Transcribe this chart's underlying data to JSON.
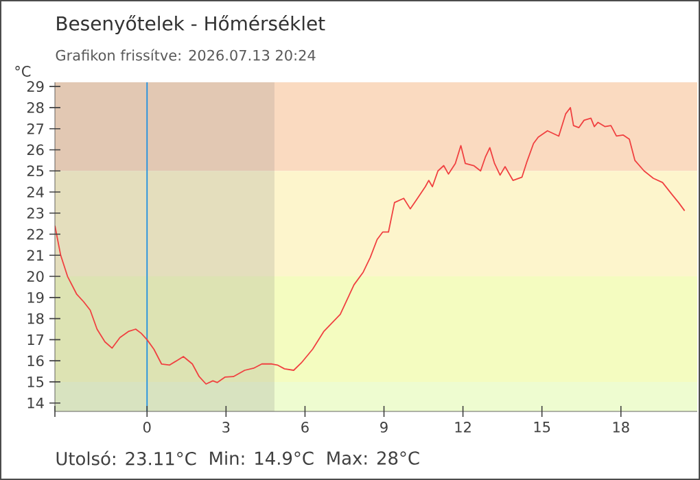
{
  "chart_data": {
    "type": "line",
    "title": "Besenyőtelek - Hőmérséklet",
    "subtitle": "Grafikon frissítve: 2026.07.13 20:24",
    "ylabel": "°C",
    "annotations": [
      "Utolsó: 23.11°C",
      "Min: 14.9°C",
      "Max: 28°C"
    ],
    "xlim": [
      -3.5,
      20.9
    ],
    "ylim": [
      13.6,
      29.2
    ],
    "xticks": [
      {
        "value": -3.5,
        "label": null
      },
      0,
      3,
      6,
      9,
      12,
      15,
      18
    ],
    "yticks": [
      14,
      15,
      16,
      17,
      18,
      19,
      20,
      21,
      22,
      23,
      24,
      25,
      26,
      27,
      28,
      29
    ],
    "bands": [
      {
        "axis": "y",
        "from": 25,
        "to": 29.2,
        "color": "#fadac0"
      },
      {
        "axis": "y",
        "from": 20,
        "to": 25,
        "color": "#fdf5cc"
      },
      {
        "axis": "y",
        "from": 15,
        "to": 20,
        "color": "#f4fcc0"
      },
      {
        "axis": "y",
        "from": 13.6,
        "to": 15,
        "color": "#eefcd0"
      },
      {
        "axis": "x",
        "from": -3.5,
        "to": 4.84,
        "color": "#808080"
      }
    ],
    "ref_lines": [
      {
        "axis": "x",
        "value": 0,
        "color": "#1e8fe0"
      }
    ],
    "series": [
      {
        "color": "#f04040",
        "x": [
          -3.5,
          -3.28,
          -3.02,
          -2.67,
          -2.41,
          -2.16,
          -1.9,
          -1.6,
          -1.33,
          -1.03,
          -0.69,
          -0.43,
          -0.22,
          0,
          0.26,
          0.55,
          0.86,
          1.12,
          1.38,
          1.72,
          1.98,
          2.24,
          2.5,
          2.67,
          2.97,
          3.28,
          3.71,
          4.05,
          4.36,
          4.74,
          4.95,
          5.22,
          5.57,
          5.86,
          6.29,
          6.72,
          7.07,
          7.34,
          7.86,
          8.21,
          8.48,
          8.74,
          8.95,
          9.17,
          9.4,
          9.75,
          10.0,
          10.22,
          10.57,
          10.7,
          10.84,
          11.05,
          11.27,
          11.45,
          11.71,
          11.92,
          12.09,
          12.41,
          12.67,
          12.85,
          13.02,
          13.2,
          13.41,
          13.6,
          13.9,
          14.24,
          14.42,
          14.68,
          14.86,
          15.21,
          15.64,
          15.9,
          16.08,
          16.2,
          16.4,
          16.6,
          16.86,
          16.99,
          17.13,
          17.39,
          17.62,
          17.83,
          18.09,
          18.32,
          18.53,
          18.88,
          19.23,
          19.58,
          19.93,
          20.19,
          20.42
        ],
        "values": [
          22.4,
          21.0,
          20.0,
          19.15,
          18.8,
          18.4,
          17.5,
          16.9,
          16.6,
          17.1,
          17.4,
          17.5,
          17.3,
          17.0,
          16.55,
          15.85,
          15.8,
          16.0,
          16.2,
          15.85,
          15.25,
          14.9,
          15.05,
          14.97,
          15.23,
          15.25,
          15.55,
          15.65,
          15.85,
          15.85,
          15.8,
          15.62,
          15.55,
          15.9,
          16.55,
          17.4,
          17.85,
          18.2,
          19.6,
          20.2,
          20.9,
          21.75,
          22.1,
          22.1,
          23.5,
          23.7,
          23.2,
          23.6,
          24.25,
          24.55,
          24.25,
          25.0,
          25.25,
          24.85,
          25.35,
          26.2,
          25.35,
          25.25,
          25.0,
          25.65,
          26.1,
          25.35,
          24.8,
          25.2,
          24.55,
          24.7,
          25.4,
          26.3,
          26.6,
          26.9,
          26.65,
          27.7,
          28.0,
          27.15,
          27.05,
          27.4,
          27.5,
          27.1,
          27.3,
          27.1,
          27.15,
          26.65,
          26.7,
          26.5,
          25.5,
          25.0,
          24.65,
          24.45,
          23.9,
          23.5,
          23.11
        ]
      }
    ]
  }
}
